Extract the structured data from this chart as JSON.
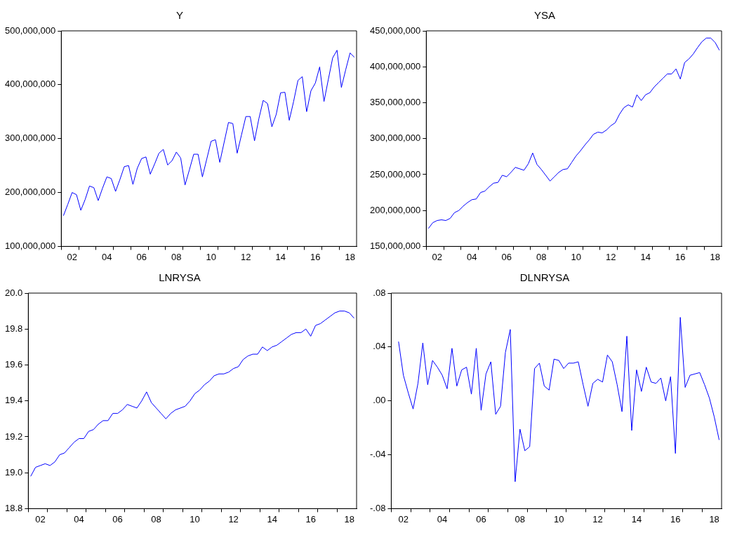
{
  "chart_data": [
    {
      "type": "line",
      "title": "Y",
      "color": "#0000ff",
      "grid": false,
      "categories": [
        null,
        null,
        "02",
        null,
        null,
        null,
        null,
        null,
        null,
        null,
        "04",
        null,
        null,
        null,
        null,
        null,
        null,
        null,
        "06",
        null,
        null,
        null,
        null,
        null,
        null,
        null,
        "08",
        null,
        null,
        null,
        null,
        null,
        null,
        null,
        "10",
        null,
        null,
        null,
        null,
        null,
        null,
        null,
        "12",
        null,
        null,
        null,
        null,
        null,
        null,
        null,
        "14",
        null,
        null,
        null,
        null,
        null,
        null,
        null,
        "16",
        null,
        null,
        null,
        null,
        null,
        null,
        null,
        "18",
        null
      ],
      "values": [
        157000000,
        178000000,
        200000000,
        196000000,
        167000000,
        187000000,
        212000000,
        209000000,
        185000000,
        208000000,
        229000000,
        226000000,
        202000000,
        224000000,
        248000000,
        250000000,
        215000000,
        245000000,
        263000000,
        266000000,
        234000000,
        253000000,
        273000000,
        280000000,
        251000000,
        259000000,
        275000000,
        264000000,
        214000000,
        242000000,
        271000000,
        271000000,
        229000000,
        262000000,
        295000000,
        298000000,
        256000000,
        293000000,
        330000000,
        328000000,
        273000000,
        307000000,
        341000000,
        341000000,
        296000000,
        337000000,
        371000000,
        365000000,
        322000000,
        345000000,
        385000000,
        386000000,
        334000000,
        369000000,
        408000000,
        415000000,
        350000000,
        389000000,
        403000000,
        433000000,
        369000000,
        410000000,
        450000000,
        464000000,
        395000000,
        428000000,
        459000000,
        451000000
      ],
      "ylim": [
        100000000,
        500000000
      ],
      "yticks": [
        {
          "value": 100000000,
          "label": "100,000,000"
        },
        {
          "value": 200000000,
          "label": "200,000,000"
        },
        {
          "value": 300000000,
          "label": "300,000,000"
        },
        {
          "value": 400000000,
          "label": "400,000,000"
        },
        {
          "value": 500000000,
          "label": "500,000,000"
        }
      ]
    },
    {
      "type": "line",
      "title": "YSA",
      "color": "#0000ff",
      "grid": false,
      "categories": [
        null,
        null,
        "02",
        null,
        null,
        null,
        null,
        null,
        null,
        null,
        "04",
        null,
        null,
        null,
        null,
        null,
        null,
        null,
        "06",
        null,
        null,
        null,
        null,
        null,
        null,
        null,
        "08",
        null,
        null,
        null,
        null,
        null,
        null,
        null,
        "10",
        null,
        null,
        null,
        null,
        null,
        null,
        null,
        "12",
        null,
        null,
        null,
        null,
        null,
        null,
        null,
        "14",
        null,
        null,
        null,
        null,
        null,
        null,
        null,
        "16",
        null,
        null,
        null,
        null,
        null,
        null,
        null,
        "18",
        null
      ],
      "values": [
        175000000,
        183000000,
        186000000,
        187000000,
        186000000,
        189000000,
        197000000,
        200000000,
        206000000,
        211000000,
        215000000,
        216000000,
        225000000,
        227000000,
        233000000,
        238000000,
        239000000,
        249000000,
        247000000,
        253000000,
        260000000,
        258000000,
        256000000,
        265000000,
        280000000,
        264000000,
        257000000,
        249000000,
        241000000,
        247000000,
        253000000,
        257000000,
        258000000,
        267000000,
        276000000,
        283000000,
        291000000,
        298000000,
        306000000,
        309000000,
        308000000,
        312000000,
        318000000,
        322000000,
        334000000,
        343000000,
        347000000,
        344000000,
        361000000,
        353000000,
        361000000,
        364000000,
        372000000,
        378000000,
        384000000,
        390000000,
        390000000,
        397000000,
        383000000,
        406000000,
        411000000,
        418000000,
        427000000,
        435000000,
        440000000,
        440000000,
        434000000,
        423000000
      ],
      "ylim": [
        150000000,
        450000000
      ],
      "yticks": [
        {
          "value": 150000000,
          "label": "150,000,000"
        },
        {
          "value": 200000000,
          "label": "200,000,000"
        },
        {
          "value": 250000000,
          "label": "250,000,000"
        },
        {
          "value": 300000000,
          "label": "300,000,000"
        },
        {
          "value": 350000000,
          "label": "350,000,000"
        },
        {
          "value": 400000000,
          "label": "400,000,000"
        },
        {
          "value": 450000000,
          "label": "450,000,000"
        }
      ]
    },
    {
      "type": "line",
      "title": "LNRYSA",
      "color": "#0000ff",
      "grid": false,
      "categories": [
        null,
        null,
        "02",
        null,
        null,
        null,
        null,
        null,
        null,
        null,
        "04",
        null,
        null,
        null,
        null,
        null,
        null,
        null,
        "06",
        null,
        null,
        null,
        null,
        null,
        null,
        null,
        "08",
        null,
        null,
        null,
        null,
        null,
        null,
        null,
        "10",
        null,
        null,
        null,
        null,
        null,
        null,
        null,
        "12",
        null,
        null,
        null,
        null,
        null,
        null,
        null,
        "14",
        null,
        null,
        null,
        null,
        null,
        null,
        null,
        "16",
        null,
        null,
        null,
        null,
        null,
        null,
        null,
        "18",
        null
      ],
      "values": [
        18.98,
        19.03,
        19.04,
        19.05,
        19.04,
        19.06,
        19.1,
        19.11,
        19.14,
        19.17,
        19.19,
        19.19,
        19.23,
        19.24,
        19.27,
        19.29,
        19.29,
        19.33,
        19.33,
        19.35,
        19.38,
        19.37,
        19.36,
        19.4,
        19.45,
        19.39,
        19.36,
        19.33,
        19.3,
        19.33,
        19.35,
        19.36,
        19.37,
        19.4,
        19.44,
        19.46,
        19.49,
        19.51,
        19.54,
        19.55,
        19.55,
        19.56,
        19.58,
        19.59,
        19.63,
        19.65,
        19.66,
        19.66,
        19.7,
        19.68,
        19.7,
        19.71,
        19.73,
        19.75,
        19.77,
        19.78,
        19.78,
        19.8,
        19.76,
        19.82,
        19.83,
        19.85,
        19.87,
        19.89,
        19.9,
        19.9,
        19.89,
        19.86
      ],
      "ylim": [
        18.8,
        20.0
      ],
      "yticks": [
        18.8,
        {
          "value": 19,
          "label": "19.0"
        },
        19.2,
        19.4,
        19.6,
        19.8,
        {
          "value": 20,
          "label": "20.0"
        }
      ]
    },
    {
      "type": "line",
      "title": "DLNRYSA",
      "color": "#0000ff",
      "grid": false,
      "categories": [
        null,
        null,
        "02",
        null,
        null,
        null,
        null,
        null,
        null,
        null,
        "04",
        null,
        null,
        null,
        null,
        null,
        null,
        null,
        "06",
        null,
        null,
        null,
        null,
        null,
        null,
        null,
        "08",
        null,
        null,
        null,
        null,
        null,
        null,
        null,
        "10",
        null,
        null,
        null,
        null,
        null,
        null,
        null,
        "12",
        null,
        null,
        null,
        null,
        null,
        null,
        null,
        "14",
        null,
        null,
        null,
        null,
        null,
        null,
        null,
        "16",
        null,
        null,
        null,
        null,
        null,
        null,
        null,
        "18",
        null
      ],
      "values": [
        null,
        0.044,
        0.019,
        0.006,
        -0.006,
        0.013,
        0.043,
        0.012,
        0.03,
        0.025,
        0.019,
        0.009,
        0.039,
        0.011,
        0.023,
        0.025,
        0.005,
        0.039,
        -0.007,
        0.02,
        0.029,
        -0.01,
        -0.004,
        0.036,
        0.053,
        -0.06,
        -0.021,
        -0.037,
        -0.034,
        0.024,
        0.028,
        0.011,
        0.008,
        0.031,
        0.03,
        0.024,
        0.028,
        0.028,
        0.029,
        0.012,
        -0.004,
        0.013,
        0.016,
        0.014,
        0.034,
        0.029,
        0.012,
        -0.008,
        0.048,
        -0.022,
        0.023,
        0.007,
        0.025,
        0.014,
        0.013,
        0.017,
        0.0,
        0.018,
        -0.039,
        0.062,
        0.01,
        0.019,
        0.02,
        0.021,
        0.012,
        0.002,
        -0.012,
        -0.029
      ],
      "ylim": [
        -0.08,
        0.08
      ],
      "yticks": [
        {
          "value": -0.08,
          "label": "-.08"
        },
        {
          "value": -0.04,
          "label": "-.04"
        },
        {
          "value": 0,
          "label": ".00"
        },
        {
          "value": 0.04,
          "label": ".04"
        },
        {
          "value": 0.08,
          "label": ".08"
        }
      ]
    }
  ]
}
